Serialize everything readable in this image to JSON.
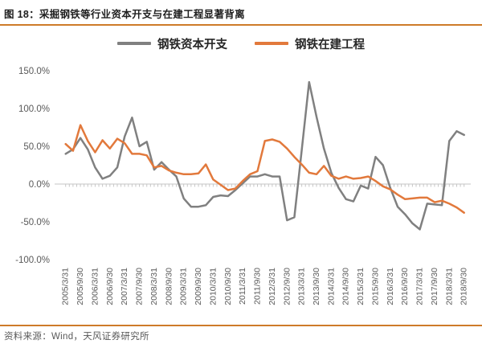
{
  "header": {
    "title": "图 18：采掘钢铁等行业资本开支与在建工程显著背离"
  },
  "footer": {
    "source": "资料来源：Wind，天风证券研究所"
  },
  "colors": {
    "capex_line": "#808080",
    "construction_line": "#e2793c",
    "divider": "#ce7b29",
    "axis_text": "#595959",
    "axis_line": "#c6c6c6",
    "title_text": "#1f1f1f"
  },
  "chart_data": {
    "type": "line",
    "title": "",
    "xlabel": "",
    "ylabel": "",
    "ylim": [
      -100,
      150
    ],
    "grid": false,
    "legend_position": "top",
    "yticks": [
      "150.0%",
      "100.0%",
      "50.0%",
      "0.0%",
      "-50.0%",
      "-100.0%"
    ],
    "ytick_values": [
      150,
      100,
      50,
      0,
      -50,
      -100
    ],
    "x_label_every": 2,
    "categories": [
      "2005/3/31",
      "2005/6/30",
      "2005/9/30",
      "2005/12/31",
      "2006/3/31",
      "2006/6/30",
      "2006/9/30",
      "2006/12/31",
      "2007/3/31",
      "2007/6/30",
      "2007/9/30",
      "2007/12/31",
      "2008/3/31",
      "2008/6/30",
      "2008/9/30",
      "2008/12/31",
      "2009/3/31",
      "2009/6/30",
      "2009/9/30",
      "2009/12/31",
      "2010/3/31",
      "2010/6/30",
      "2010/9/30",
      "2010/12/31",
      "2011/3/31",
      "2011/6/30",
      "2011/9/30",
      "2011/12/31",
      "2012/3/31",
      "2012/6/30",
      "2012/9/30",
      "2012/12/31",
      "2013/3/31",
      "2013/6/30",
      "2013/9/30",
      "2013/12/31",
      "2014/3/31",
      "2014/6/30",
      "2014/9/30",
      "2014/12/31",
      "2015/3/31",
      "2015/6/30",
      "2015/9/30",
      "2015/12/31",
      "2016/3/31",
      "2016/6/30",
      "2016/9/30",
      "2016/12/31",
      "2017/3/31",
      "2017/6/30",
      "2017/9/30",
      "2017/12/31",
      "2018/3/31",
      "2018/6/30",
      "2018/9/30"
    ],
    "series": [
      {
        "name": "钢铁资本开支",
        "color_key": "capex_line",
        "values": [
          40,
          46,
          61,
          46,
          22,
          7,
          11,
          22,
          63,
          88,
          50,
          56,
          19,
          29,
          19,
          10,
          -19,
          -30,
          -30,
          -28,
          -17,
          -15,
          -16,
          -8,
          1,
          10,
          10,
          13,
          10,
          10,
          -48,
          -44,
          45,
          135,
          89,
          47,
          15,
          -5,
          -20,
          -23,
          -2,
          -6,
          36,
          25,
          -5,
          -30,
          -40,
          -52,
          -60,
          -26,
          -27,
          -28,
          57,
          70,
          65
        ]
      },
      {
        "name": "钢铁在建工程",
        "color_key": "construction_line",
        "values": [
          53,
          44,
          78,
          57,
          42,
          58,
          47,
          60,
          54,
          40,
          40,
          38,
          22,
          24,
          18,
          15,
          13,
          13,
          14,
          26,
          6,
          -1,
          -8,
          -6,
          4,
          13,
          17,
          57,
          59,
          56,
          47,
          36,
          26,
          15,
          13,
          24,
          11,
          7,
          10,
          7,
          8,
          10,
          4,
          -3,
          -7,
          -14,
          -20,
          -19,
          -18,
          -18,
          -24,
          -22,
          -26,
          -31,
          -38
        ]
      }
    ]
  }
}
